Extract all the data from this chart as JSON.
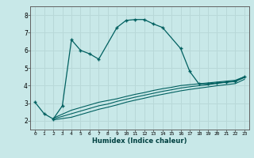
{
  "xlabel": "Humidex (Indice chaleur)",
  "ylabel": "",
  "bg_color": "#c8e8e8",
  "grid_color": "#b8d8d8",
  "line_color": "#006060",
  "xlim": [
    -0.5,
    23.5
  ],
  "ylim": [
    1.5,
    8.5
  ],
  "xticks": [
    0,
    1,
    2,
    3,
    4,
    5,
    6,
    7,
    8,
    9,
    10,
    11,
    12,
    13,
    14,
    15,
    16,
    17,
    18,
    19,
    20,
    21,
    22,
    23
  ],
  "yticks": [
    2,
    3,
    4,
    5,
    6,
    7,
    8
  ],
  "main_x": [
    0,
    1,
    2,
    3,
    4,
    5,
    6,
    7,
    9,
    10,
    11,
    12,
    13,
    14,
    16,
    17,
    18,
    19,
    20,
    21,
    22,
    23
  ],
  "main_y": [
    3.05,
    2.4,
    2.1,
    2.85,
    6.6,
    6.0,
    5.8,
    5.5,
    7.3,
    7.7,
    7.75,
    7.75,
    7.5,
    7.3,
    6.1,
    4.8,
    4.1,
    4.1,
    4.15,
    4.2,
    4.25,
    4.5
  ],
  "line2_x": [
    2,
    4,
    5,
    6,
    7,
    8,
    9,
    10,
    11,
    12,
    13,
    14,
    15,
    16,
    17,
    18,
    19,
    20,
    21,
    22,
    23
  ],
  "line2_y": [
    2.15,
    2.6,
    2.75,
    2.9,
    3.05,
    3.15,
    3.25,
    3.38,
    3.5,
    3.6,
    3.72,
    3.82,
    3.9,
    4.0,
    4.05,
    4.1,
    4.15,
    4.2,
    4.25,
    4.3,
    4.5
  ],
  "line3_x": [
    2,
    4,
    5,
    6,
    7,
    8,
    9,
    10,
    11,
    12,
    13,
    14,
    15,
    16,
    17,
    18,
    19,
    20,
    21,
    22,
    23
  ],
  "line3_y": [
    2.1,
    2.4,
    2.55,
    2.7,
    2.85,
    2.95,
    3.1,
    3.22,
    3.34,
    3.45,
    3.56,
    3.67,
    3.76,
    3.86,
    3.93,
    3.99,
    4.05,
    4.12,
    4.18,
    4.23,
    4.45
  ],
  "line4_x": [
    2,
    4,
    5,
    6,
    7,
    8,
    9,
    10,
    11,
    12,
    13,
    14,
    15,
    16,
    17,
    18,
    19,
    20,
    21,
    22,
    23
  ],
  "line4_y": [
    2.05,
    2.2,
    2.35,
    2.5,
    2.65,
    2.77,
    2.9,
    3.05,
    3.17,
    3.28,
    3.4,
    3.5,
    3.6,
    3.7,
    3.78,
    3.85,
    3.92,
    3.99,
    4.05,
    4.11,
    4.35
  ],
  "figsize": [
    3.2,
    2.0
  ],
  "dpi": 100
}
